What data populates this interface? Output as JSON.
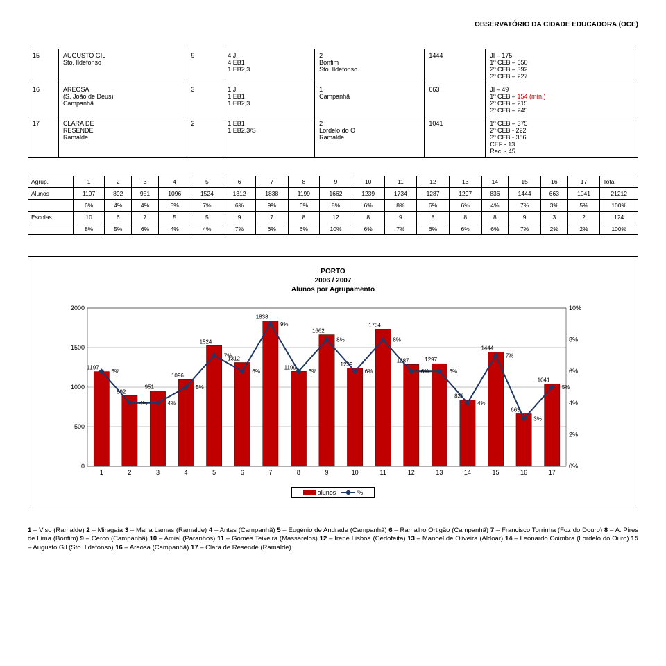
{
  "header": "OBSERVATÓRIO DA CIDADE EDUCADORA (OCE)",
  "table1": {
    "rows": [
      {
        "c1": "15",
        "c2": "AUGUSTO GIL\nSto. Ildefonso",
        "c3": "9",
        "c4": "4 JI\n4 EB1\n1 EB2,3",
        "c5": "2\nBonfim\nSto. Ildefonso",
        "c6": "1444",
        "c7": "JI – 175\n1º CEB – 650\n2º CEB – 392\n3º CEB – 227"
      },
      {
        "c1": "16",
        "c2": "AREOSA\n(S. João de Deus)\nCampanhã",
        "c3": "3",
        "c4": "1 JI\n1 EB1\n1 EB2,3",
        "c5": "1\nCampanhã",
        "c6": "663",
        "c7": "JI – 49\n1º CEB – 154 (mín.)\n2º CEB – 215\n3º CEB – 245"
      },
      {
        "c1": "17",
        "c2": "CLARA DE\nRESENDE\nRamalde",
        "c3": "2",
        "c4": "1 EB1\n1 EB2,3/S",
        "c5": "2\nLordelo do O\nRamalde",
        "c6": "1041",
        "c7": "1º CEB – 375\n2º CEB - 222\n3º CEB - 386\nCEF - 13\nRec. - 45"
      }
    ]
  },
  "table2": {
    "head": [
      "Agrup.",
      "1",
      "2",
      "3",
      "4",
      "5",
      "6",
      "7",
      "8",
      "9",
      "10",
      "11",
      "12",
      "13",
      "14",
      "15",
      "16",
      "17",
      "Total"
    ],
    "rows": [
      [
        "Alunos",
        "1197",
        "892",
        "951",
        "1096",
        "1524",
        "1312",
        "1838",
        "1199",
        "1662",
        "1239",
        "1734",
        "1287",
        "1297",
        "836",
        "1444",
        "663",
        "1041",
        "21212"
      ],
      [
        "",
        "6%",
        "4%",
        "4%",
        "5%",
        "7%",
        "6%",
        "9%",
        "6%",
        "8%",
        "6%",
        "8%",
        "6%",
        "6%",
        "4%",
        "7%",
        "3%",
        "5%",
        "100%"
      ],
      [
        "Escolas",
        "10",
        "6",
        "7",
        "5",
        "5",
        "9",
        "7",
        "8",
        "12",
        "8",
        "9",
        "8",
        "8",
        "8",
        "9",
        "3",
        "2",
        "124"
      ],
      [
        "",
        "8%",
        "5%",
        "6%",
        "4%",
        "4%",
        "7%",
        "6%",
        "6%",
        "10%",
        "6%",
        "7%",
        "6%",
        "6%",
        "6%",
        "7%",
        "2%",
        "2%",
        "100%"
      ]
    ]
  },
  "chart": {
    "title": "PORTO\n2006 / 2007\nAlunos por Agrupamento",
    "x_categories": [
      "1",
      "2",
      "3",
      "4",
      "5",
      "6",
      "7",
      "8",
      "9",
      "10",
      "11",
      "12",
      "13",
      "14",
      "15",
      "16",
      "17"
    ],
    "bar_values": [
      1197,
      892,
      951,
      1096,
      1524,
      1312,
      1838,
      1199,
      1662,
      1239,
      1734,
      1287,
      1297,
      836,
      1444,
      663,
      1041
    ],
    "bar_labels": [
      "1197",
      "892",
      "951",
      "1096",
      "1524",
      "1312",
      "1838",
      "1199",
      "1662",
      "1239",
      "1734",
      "1287",
      "1297",
      "836",
      "1444",
      "663",
      "1041"
    ],
    "line_values": [
      6,
      4,
      4,
      5,
      7,
      6,
      9,
      6,
      8,
      6,
      8,
      6,
      6,
      4,
      7,
      3,
      5
    ],
    "line_labels": [
      "6%",
      "4%",
      "4%",
      "5%",
      "7%",
      "6%",
      "9%",
      "6%",
      "8%",
      "6%",
      "8%",
      "6%",
      "6%",
      "4%",
      "7%",
      "3%",
      "5%"
    ],
    "y_left_ticks": [
      0,
      500,
      1000,
      1500,
      2000
    ],
    "y_right_ticks": [
      "0%",
      "2%",
      "4%",
      "6%",
      "8%",
      "10%"
    ],
    "bar_color": "#c00000",
    "line_color": "#203864",
    "grid_color": "#808080",
    "bg_color": "#ffffff",
    "y_left_max": 2000,
    "y_right_max": 10,
    "legend": {
      "bar": "alunos",
      "line": "%"
    }
  },
  "footnote_html": "<b>1</b> – Viso (Ramalde) <b>2</b> – Miragaia <b>3</b> – Maria Lamas (Ramalde) <b>4</b> – Antas (Campanhã) <b>5</b> – Eugénio de Andrade (Campanhã) <b>6</b> – Ramalho Ortigão (Campanhã) <b>7</b> – Francisco Torrinha (Foz do Douro) <b>8</b> – A. Pires de Lima (Bonfim) <b>9</b> – Cerco (Campanhã) <b>10</b> – Amial (Paranhos) <b>11</b> – Gomes Teixeira (Massarelos) <b>12</b> – Irene Lisboa (Cedofeita) <b>13</b> – Manoel de Oliveira (Aldoar) <b>14</b> – Leonardo Coimbra (Lordelo do Ouro) <b>15</b> – Augusto Gil (Sto. Ildefonso) <b>16</b> – Areosa (Campanhã) <b>17</b> – Clara de Resende (Ramalde)"
}
